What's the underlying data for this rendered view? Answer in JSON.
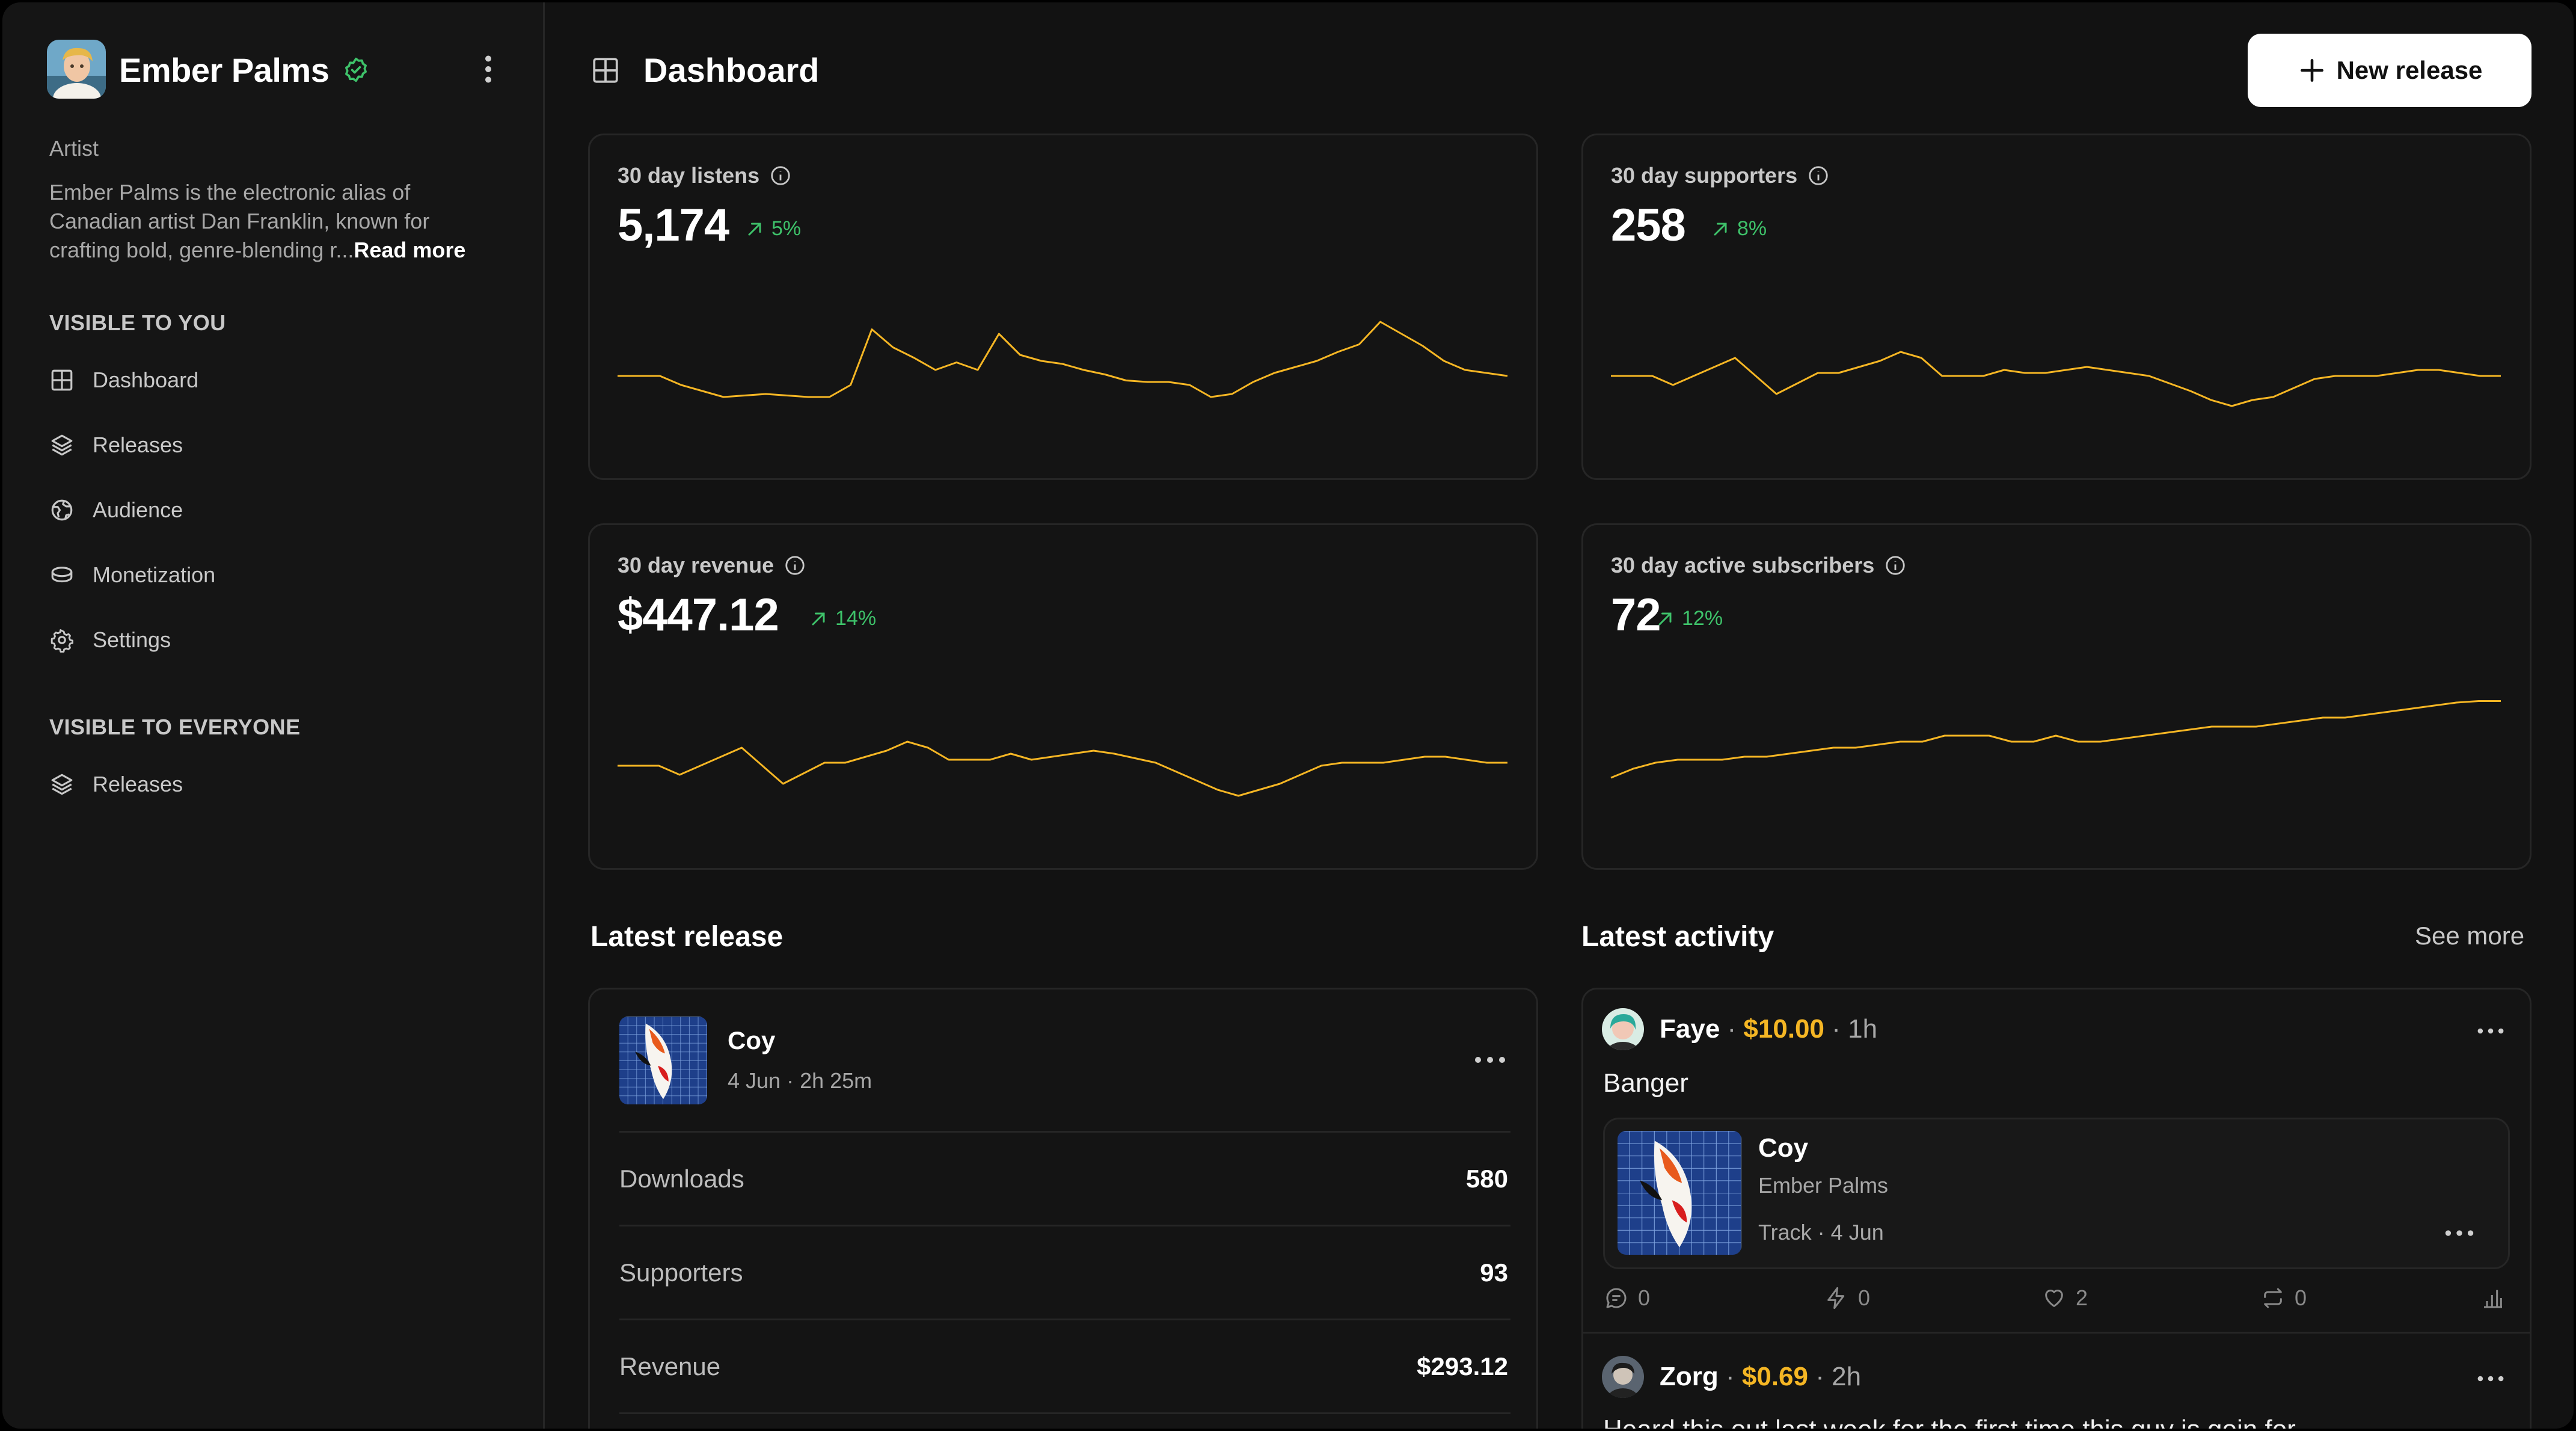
{
  "artist": {
    "name": "Ember Palms",
    "role": "Artist",
    "bio": "Ember Palms is the electronic alias of Canadian artist Dan Franklin, known for crafting bold, genre-blending r...",
    "read_more": "Read more"
  },
  "sidebar": {
    "section_private": "VISIBLE TO YOU",
    "private_items": [
      {
        "label": "Dashboard",
        "icon": "grid-icon"
      },
      {
        "label": "Releases",
        "icon": "layers-icon"
      },
      {
        "label": "Audience",
        "icon": "globe-icon"
      },
      {
        "label": "Monetization",
        "icon": "coins-icon"
      },
      {
        "label": "Settings",
        "icon": "gear-icon"
      }
    ],
    "section_public": "VISIBLE TO EVERYONE",
    "public_items": [
      {
        "label": "Releases",
        "icon": "layers-icon"
      }
    ]
  },
  "header": {
    "title": "Dashboard",
    "new_release_label": "New release"
  },
  "stats": {
    "listens": {
      "title": "30 day listens",
      "value": "5,174",
      "change": "5%",
      "trend": [
        0.36,
        0.36,
        0.36,
        0.3,
        0.26,
        0.22,
        0.23,
        0.24,
        0.23,
        0.22,
        0.22,
        0.3,
        0.67,
        0.55,
        0.48,
        0.4,
        0.45,
        0.4,
        0.64,
        0.5,
        0.46,
        0.44,
        0.4,
        0.37,
        0.33,
        0.32,
        0.32,
        0.3,
        0.22,
        0.24,
        0.32,
        0.38,
        0.42,
        0.46,
        0.52,
        0.57,
        0.72,
        0.64,
        0.56,
        0.46,
        0.4,
        0.38,
        0.36
      ]
    },
    "supporters": {
      "title": "30 day supporters",
      "value": "258",
      "change": "8%",
      "trend": [
        0.36,
        0.36,
        0.36,
        0.3,
        0.36,
        0.42,
        0.48,
        0.36,
        0.24,
        0.31,
        0.38,
        0.38,
        0.42,
        0.46,
        0.52,
        0.48,
        0.36,
        0.36,
        0.36,
        0.4,
        0.38,
        0.38,
        0.4,
        0.42,
        0.4,
        0.38,
        0.36,
        0.31,
        0.26,
        0.2,
        0.16,
        0.2,
        0.22,
        0.28,
        0.34,
        0.36,
        0.36,
        0.36,
        0.38,
        0.4,
        0.4,
        0.38,
        0.36,
        0.36
      ]
    },
    "revenue": {
      "title": "30 day revenue",
      "value": "$447.12",
      "change": "14%",
      "trend": [
        0.36,
        0.36,
        0.36,
        0.3,
        0.36,
        0.42,
        0.48,
        0.36,
        0.24,
        0.31,
        0.38,
        0.38,
        0.42,
        0.46,
        0.52,
        0.48,
        0.4,
        0.4,
        0.4,
        0.44,
        0.4,
        0.42,
        0.44,
        0.46,
        0.44,
        0.41,
        0.38,
        0.32,
        0.26,
        0.2,
        0.16,
        0.2,
        0.24,
        0.3,
        0.36,
        0.38,
        0.38,
        0.38,
        0.4,
        0.42,
        0.42,
        0.4,
        0.38,
        0.38
      ]
    },
    "subscribers": {
      "title": "30 day active subscribers",
      "value": "72",
      "change": "12%",
      "trend": [
        0.28,
        0.34,
        0.38,
        0.4,
        0.4,
        0.4,
        0.42,
        0.42,
        0.44,
        0.46,
        0.48,
        0.48,
        0.5,
        0.52,
        0.52,
        0.56,
        0.56,
        0.56,
        0.52,
        0.52,
        0.56,
        0.52,
        0.52,
        0.54,
        0.56,
        0.58,
        0.6,
        0.62,
        0.62,
        0.62,
        0.64,
        0.66,
        0.68,
        0.68,
        0.7,
        0.72,
        0.74,
        0.76,
        0.78,
        0.79,
        0.79
      ]
    }
  },
  "latest_release": {
    "heading": "Latest release",
    "title": "Coy",
    "date": "4 Jun",
    "duration": "2h 25m",
    "rows": [
      {
        "label": "Downloads",
        "value": "580"
      },
      {
        "label": "Supporters",
        "value": "93"
      },
      {
        "label": "Revenue",
        "value": "$293.12"
      }
    ]
  },
  "activity": {
    "heading": "Latest activity",
    "see_more": "See more",
    "items": [
      {
        "user": "Faye",
        "amount": "$10.00",
        "time": "1h",
        "comment": "Banger",
        "track": {
          "title": "Coy",
          "artist": "Ember Palms",
          "type": "Track",
          "date": "4 Jun"
        },
        "comments": "0",
        "boosts": "0",
        "likes": "2",
        "reposts": "0"
      },
      {
        "user": "Zorg",
        "amount": "$0.69",
        "time": "2h",
        "comment": "Heard this out last week for the first time this guy is goin for..."
      }
    ]
  },
  "colors": {
    "accent": "#f5b624",
    "positive": "#3ec26a",
    "background": "#121212",
    "card": "#141414",
    "border": "#262626"
  }
}
